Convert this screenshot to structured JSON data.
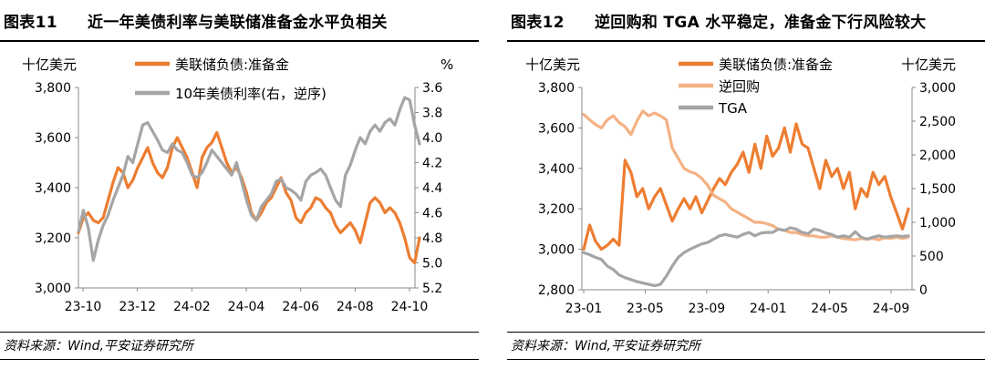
{
  "panels": [
    {
      "title_code": "图表11",
      "title_text": "近一年美债利率与美联储准备金水平负相关",
      "source": "资料来源：Wind,平安证券研究所"
    },
    {
      "title_code": "图表12",
      "title_text": "逆回购和 TGA 水平稳定，准备金下行风险较大",
      "source": "资料来源：Wind,平安证券研究所"
    }
  ],
  "chart_data": [
    {
      "type": "line",
      "left_unit": "十亿美元",
      "right_unit": "%",
      "left_ylim": [
        3000,
        3800
      ],
      "right_ylim": [
        3.6,
        5.2
      ],
      "right_inverted": true,
      "left_ticks": [
        "3,000",
        "3,200",
        "3,400",
        "3,600",
        "3,800"
      ],
      "right_ticks": [
        "3.6",
        "3.8",
        "4.0",
        "4.2",
        "4.4",
        "4.6",
        "4.8",
        "5.0",
        "5.2"
      ],
      "x_ticks": [
        "23-10",
        "23-12",
        "24-02",
        "24-04",
        "24-06",
        "24-08",
        "24-10"
      ],
      "legend_position": "top-left",
      "series": [
        {
          "name": "美联储负债:准备金",
          "axis": "left",
          "color": "#ED7D31",
          "values": [
            3220,
            3280,
            3300,
            3270,
            3260,
            3280,
            3350,
            3420,
            3480,
            3460,
            3400,
            3430,
            3480,
            3520,
            3560,
            3500,
            3460,
            3440,
            3480,
            3560,
            3600,
            3560,
            3520,
            3460,
            3400,
            3520,
            3560,
            3580,
            3620,
            3560,
            3500,
            3460,
            3480,
            3440,
            3380,
            3300,
            3270,
            3300,
            3340,
            3360,
            3400,
            3440,
            3380,
            3350,
            3280,
            3260,
            3300,
            3320,
            3360,
            3350,
            3320,
            3300,
            3250,
            3220,
            3240,
            3260,
            3230,
            3180,
            3260,
            3340,
            3360,
            3340,
            3300,
            3320,
            3300,
            3260,
            3200,
            3120,
            3100,
            3200
          ]
        },
        {
          "name": "10年美债利率(右，逆序)",
          "axis": "right",
          "color": "#A5A5A5",
          "values": [
            4.75,
            4.58,
            4.72,
            4.98,
            4.82,
            4.7,
            4.62,
            4.5,
            4.4,
            4.3,
            4.15,
            4.2,
            4.05,
            3.9,
            3.88,
            3.95,
            4.02,
            4.1,
            4.12,
            4.05,
            4.1,
            4.12,
            4.2,
            4.3,
            4.32,
            4.28,
            4.2,
            4.1,
            4.15,
            4.2,
            4.25,
            4.3,
            4.2,
            4.35,
            4.5,
            4.62,
            4.66,
            4.55,
            4.5,
            4.45,
            4.35,
            4.33,
            4.4,
            4.42,
            4.45,
            4.5,
            4.35,
            4.3,
            4.28,
            4.25,
            4.3,
            4.4,
            4.5,
            4.55,
            4.3,
            4.22,
            4.1,
            4.0,
            4.05,
            3.95,
            3.9,
            3.95,
            3.88,
            3.85,
            3.9,
            3.78,
            3.68,
            3.7,
            3.9,
            4.05
          ]
        }
      ]
    },
    {
      "type": "line",
      "left_unit": "十亿美元",
      "right_unit": "十亿美元",
      "left_ylim": [
        2800,
        3800
      ],
      "right_ylim": [
        0,
        3000
      ],
      "left_ticks": [
        "2,800",
        "3,000",
        "3,200",
        "3,400",
        "3,600",
        "3,800"
      ],
      "right_ticks": [
        "0",
        "500",
        "1,000",
        "1,500",
        "2,000",
        "2,500",
        "3,000"
      ],
      "x_ticks": [
        "23-01",
        "23-05",
        "23-09",
        "24-01",
        "24-05",
        "24-09"
      ],
      "legend_position": "top-left",
      "series": [
        {
          "name": "美联储负债:准备金",
          "axis": "left",
          "color": "#ED7D31",
          "values": [
            3000,
            3120,
            3040,
            3000,
            3020,
            3050,
            3020,
            3440,
            3380,
            3260,
            3300,
            3200,
            3260,
            3300,
            3220,
            3140,
            3200,
            3250,
            3200,
            3260,
            3180,
            3240,
            3300,
            3350,
            3320,
            3380,
            3420,
            3480,
            3380,
            3520,
            3400,
            3560,
            3460,
            3500,
            3600,
            3480,
            3620,
            3520,
            3500,
            3400,
            3300,
            3440,
            3360,
            3400,
            3300,
            3380,
            3200,
            3300,
            3260,
            3380,
            3320,
            3360,
            3260,
            3180,
            3100,
            3200
          ]
        },
        {
          "name": "逆回购",
          "axis": "right",
          "color": "#F4B183",
          "values": [
            2600,
            2520,
            2450,
            2400,
            2520,
            2580,
            2480,
            2420,
            2300,
            2500,
            2650,
            2580,
            2620,
            2580,
            2520,
            2100,
            1950,
            1800,
            1750,
            1720,
            1650,
            1550,
            1400,
            1350,
            1300,
            1200,
            1150,
            1100,
            1050,
            1000,
            1000,
            980,
            950,
            900,
            880,
            850,
            850,
            820,
            800,
            800,
            780,
            780,
            800,
            780,
            760,
            750,
            740,
            760,
            750,
            760,
            740,
            770,
            760,
            780,
            760,
            780
          ]
        },
        {
          "name": "TGA",
          "axis": "right",
          "color": "#A5A5A5",
          "values": [
            550,
            520,
            480,
            450,
            350,
            300,
            220,
            180,
            150,
            120,
            100,
            80,
            60,
            80,
            200,
            350,
            480,
            550,
            600,
            640,
            680,
            700,
            750,
            800,
            820,
            800,
            780,
            820,
            850,
            800,
            840,
            850,
            850,
            900,
            880,
            920,
            900,
            850,
            830,
            900,
            880,
            840,
            820,
            780,
            800,
            780,
            860,
            780,
            750,
            780,
            800,
            780,
            790,
            800,
            790,
            800
          ]
        }
      ]
    }
  ]
}
